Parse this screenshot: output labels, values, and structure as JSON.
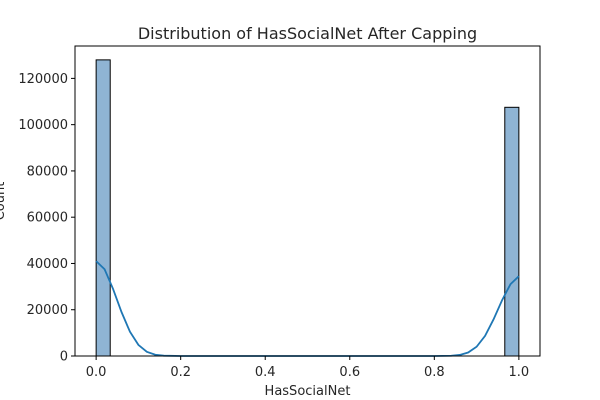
{
  "chart_data": {
    "type": "bar",
    "title": "Distribution of HasSocialNet After Capping",
    "xlabel": "HasSocialNet",
    "ylabel": "Count",
    "xlim": [
      -0.05,
      1.05
    ],
    "ylim": [
      0,
      134000
    ],
    "xticks": [
      0.0,
      0.2,
      0.4,
      0.6,
      0.8,
      1.0
    ],
    "xtick_labels": [
      "0.0",
      "0.2",
      "0.4",
      "0.6",
      "0.8",
      "1.0"
    ],
    "yticks": [
      0,
      20000,
      40000,
      60000,
      80000,
      100000,
      120000
    ],
    "ytick_labels": [
      "0",
      "20000",
      "40000",
      "60000",
      "80000",
      "100000",
      "120000"
    ],
    "bins": [
      {
        "x0": 0.0,
        "x1": 0.0333,
        "count": 128000
      },
      {
        "x0": 0.9667,
        "x1": 1.0,
        "count": 107500
      }
    ],
    "kde": {
      "x": [
        0.0,
        0.02,
        0.04,
        0.06,
        0.08,
        0.1,
        0.12,
        0.14,
        0.16,
        0.2,
        0.5,
        0.8,
        0.84,
        0.86,
        0.88,
        0.9,
        0.92,
        0.94,
        0.96,
        0.98,
        1.0
      ],
      "y": [
        41000,
        37500,
        29000,
        19000,
        10500,
        4800,
        1800,
        550,
        130,
        0,
        0,
        0,
        110,
        460,
        1500,
        4000,
        8700,
        15800,
        24000,
        31000,
        34500
      ]
    },
    "bar_color": "#8fb4d4",
    "bar_edge_color": "#000000",
    "kde_color": "#1f77b4",
    "grid": false,
    "legend": "none"
  }
}
